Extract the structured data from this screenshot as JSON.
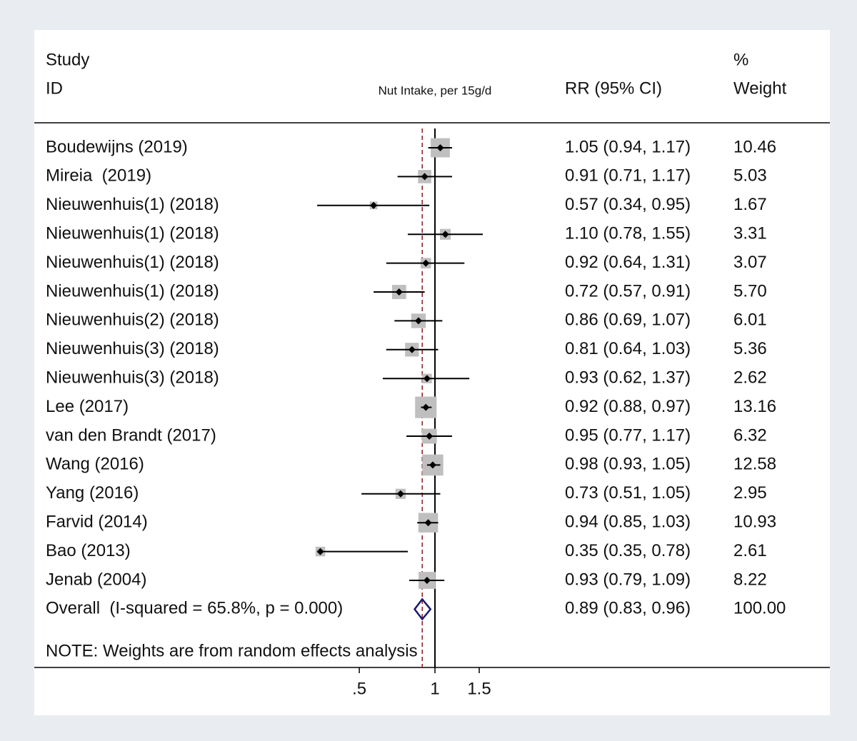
{
  "chart_data": {
    "type": "forest",
    "headers": {
      "study": "Study",
      "id": "ID",
      "effect": "Nut Intake, per 15g/d",
      "rr": "RR (95% CI)",
      "pct": "%",
      "weight": "Weight"
    },
    "studies": [
      "Boudewijns (2019)",
      "Mireia  (2019)",
      "Nieuwenhuis(1) (2018)",
      "Nieuwenhuis(1) (2018)",
      "Nieuwenhuis(1) (2018)",
      "Nieuwenhuis(1) (2018)",
      "Nieuwenhuis(2) (2018)",
      "Nieuwenhuis(3) (2018)",
      "Nieuwenhuis(3) (2018)",
      "Lee (2017)",
      "van den Brandt (2017)",
      "Wang (2016)",
      "Yang (2016)",
      "Farvid (2014)",
      "Bao (2013)",
      "Jenab (2004)"
    ],
    "rr": [
      1.05,
      0.91,
      0.57,
      1.1,
      0.92,
      0.72,
      0.86,
      0.81,
      0.93,
      0.92,
      0.95,
      0.98,
      0.73,
      0.94,
      0.35,
      0.93
    ],
    "lower": [
      0.94,
      0.71,
      0.34,
      0.78,
      0.64,
      0.57,
      0.69,
      0.64,
      0.62,
      0.88,
      0.77,
      0.93,
      0.51,
      0.85,
      0.35,
      0.79
    ],
    "upper": [
      1.17,
      1.17,
      0.95,
      1.55,
      1.31,
      0.91,
      1.07,
      1.03,
      1.37,
      0.97,
      1.17,
      1.05,
      1.05,
      1.03,
      0.78,
      1.09
    ],
    "ci_labels": [
      "1.05 (0.94, 1.17)",
      "0.91 (0.71, 1.17)",
      "0.57 (0.34, 0.95)",
      "1.10 (0.78, 1.55)",
      "0.92 (0.64, 1.31)",
      "0.72 (0.57, 0.91)",
      "0.86 (0.69, 1.07)",
      "0.81 (0.64, 1.03)",
      "0.93 (0.62, 1.37)",
      "0.92 (0.88, 0.97)",
      "0.95 (0.77, 1.17)",
      "0.98 (0.93, 1.05)",
      "0.73 (0.51, 1.05)",
      "0.94 (0.85, 1.03)",
      "0.35 (0.35, 0.78)",
      "0.93 (0.79, 1.09)"
    ],
    "weights": [
      10.46,
      5.03,
      1.67,
      3.31,
      3.07,
      5.7,
      6.01,
      5.36,
      2.62,
      13.16,
      6.32,
      12.58,
      2.95,
      10.93,
      2.61,
      8.22
    ],
    "weight_labels": [
      "10.46",
      "5.03",
      "1.67",
      "3.31",
      "3.07",
      "5.70",
      "6.01",
      "5.36",
      "2.62",
      "13.16",
      "6.32",
      "12.58",
      "2.95",
      "10.93",
      "2.61",
      "8.22"
    ],
    "overall": {
      "label": "Overall  (I-squared = 65.8%, p = 0.000)",
      "rr": 0.89,
      "lower": 0.83,
      "upper": 0.96,
      "ci_label": "0.89 (0.83, 0.96)",
      "weight": {
        "value": 100,
        "label": "100.00"
      }
    },
    "note": "NOTE: Weights are from random effects analysis",
    "xscale": "log",
    "xlim": [
      0.3,
      2
    ],
    "xticks": [
      {
        "value": 0.5,
        "label": ".5"
      },
      1,
      1.5
    ],
    "reference_line": 1,
    "square_color": "#bfbfbf",
    "point_color": "#000000",
    "overall_color": "#1a1a6e",
    "overall_line_color": "#8b1a1a"
  }
}
